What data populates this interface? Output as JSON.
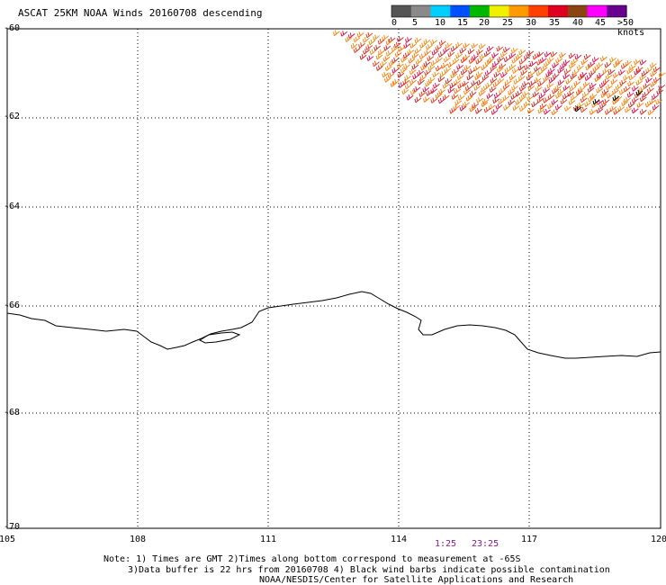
{
  "title": "ASCAT 25KM NOAA Winds 20160708 descending",
  "x_ticks": [
    "105",
    "108",
    "111",
    "114",
    "117",
    "120"
  ],
  "y_ticks": [
    "-60",
    "-62",
    "-64",
    "-66",
    "-68",
    "-70"
  ],
  "time_labels": [
    "1:25",
    "23:25"
  ],
  "colorbar": {
    "labels": [
      "0",
      "5",
      "10",
      "15",
      "20",
      "25",
      "30",
      "35",
      "40",
      "45",
      ">50 knots"
    ],
    "colors": [
      "#555555",
      "#8a8a8a",
      "#00cfff",
      "#0050ff",
      "#00b800",
      "#f0f000",
      "#ff9a00",
      "#ff4000",
      "#e00020",
      "#8b4513",
      "#ff00ff",
      "#6a0090"
    ]
  },
  "notes": {
    "line1": "Note: 1) Times are GMT 2)Times along bottom correspond to measurement at -65S",
    "line2": "3)Data buffer is 22 hrs from 20160708 4) Black wind barbs indicate possible contamination",
    "line3": "NOAA/NESDIS/Center for Satellite Applications and Research"
  }
}
